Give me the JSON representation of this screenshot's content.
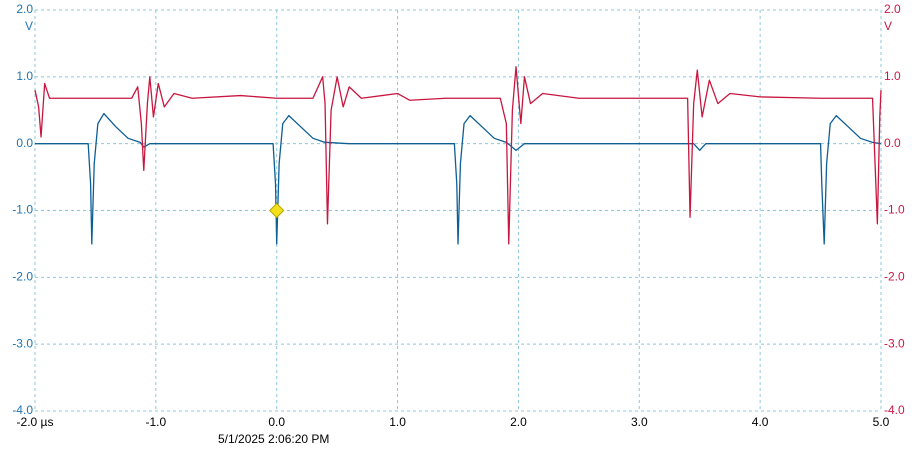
{
  "chart_data": {
    "type": "line",
    "ylabel": "V",
    "y2label": "V",
    "timestamp": "5/1/2025 2:06:20 PM",
    "xlim": [
      -2,
      5
    ],
    "xticks": [
      {
        "value": -2,
        "label": "-2.0 µs"
      },
      {
        "value": -1,
        "label": "-1.0"
      },
      {
        "value": 0,
        "label": "0.0"
      },
      {
        "value": 1,
        "label": "1.0"
      },
      {
        "value": 2,
        "label": "2.0"
      },
      {
        "value": 3,
        "label": "3.0"
      },
      {
        "value": 4,
        "label": "4.0"
      },
      {
        "value": 5,
        "label": "5.0"
      }
    ],
    "ylim": [
      -4,
      2
    ],
    "yticks": [
      {
        "value": 2,
        "label": "2.0"
      },
      {
        "value": 1,
        "label": "1.0"
      },
      {
        "value": 0,
        "label": "0.0"
      },
      {
        "value": -1,
        "label": "-1.0"
      },
      {
        "value": -2,
        "label": "-2.0"
      },
      {
        "value": -3,
        "label": "-3.0"
      },
      {
        "value": -4,
        "label": "-4.0"
      }
    ],
    "y2lim": [
      -4,
      2
    ],
    "y2ticks": [
      {
        "value": 2,
        "label": "2.0"
      },
      {
        "value": 1,
        "label": "1.0"
      },
      {
        "value": 0,
        "label": "0.0"
      },
      {
        "value": -1,
        "label": "-1.0"
      },
      {
        "value": -2,
        "label": "-2.0"
      },
      {
        "value": -3,
        "label": "-3.0"
      },
      {
        "value": -4,
        "label": "-4.0"
      }
    ],
    "grid": true,
    "y_color": "#1e73b0",
    "y2_color": "#cc1745",
    "series": [
      {
        "color": "#0d5f94",
        "x": [
          -2,
          -1.56,
          -1.54,
          -1.53,
          -1.51,
          -1.48,
          -1.43,
          -1.33,
          -1.23,
          -1.13,
          -1.1,
          -1.05,
          -0.5,
          -0.03,
          -0.01,
          0,
          0.02,
          0.05,
          0.1,
          0.2,
          0.3,
          0.4,
          0.6,
          1.47,
          1.49,
          1.5,
          1.52,
          1.55,
          1.6,
          1.7,
          1.8,
          1.9,
          1.98,
          2.05,
          3,
          3.45,
          3.5,
          3.55,
          4.5,
          4.51,
          4.53,
          4.55,
          4.58,
          4.63,
          4.73,
          4.83,
          4.93,
          5
        ],
        "values": [
          0,
          0,
          -0.6,
          -1.5,
          -0.3,
          0.3,
          0.45,
          0.25,
          0.08,
          0.02,
          -0.05,
          0,
          0,
          0,
          -0.6,
          -1.5,
          -0.3,
          0.3,
          0.42,
          0.25,
          0.08,
          0.02,
          0,
          0,
          -0.6,
          -1.5,
          -0.3,
          0.3,
          0.42,
          0.25,
          0.08,
          0.02,
          -0.1,
          0,
          0,
          0,
          -0.1,
          0,
          0,
          -0.6,
          -1.5,
          -0.3,
          0.3,
          0.42,
          0.25,
          0.08,
          0.02,
          0
        ]
      },
      {
        "color": "#c8163f",
        "axis": "y2",
        "x": [
          -2,
          -1.97,
          -1.95,
          -1.92,
          -1.88,
          -1.5,
          -1.2,
          -1.15,
          -1.12,
          -1.1,
          -1.07,
          -1.05,
          -1.02,
          -0.98,
          -0.93,
          -0.85,
          -0.7,
          -0.3,
          0,
          0.3,
          0.38,
          0.4,
          0.42,
          0.45,
          0.5,
          0.55,
          0.6,
          0.7,
          1.0,
          1.1,
          1.4,
          1.85,
          1.9,
          1.92,
          1.95,
          1.98,
          2.02,
          2.05,
          2.1,
          2.2,
          2.5,
          3.4,
          3.42,
          3.45,
          3.48,
          3.52,
          3.58,
          3.65,
          3.75,
          4.0,
          4.5,
          4.93,
          4.97,
          4.99,
          5
        ],
        "values": [
          0.8,
          0.55,
          0.1,
          0.9,
          0.68,
          0.68,
          0.68,
          0.85,
          0.3,
          -0.4,
          0.6,
          1.0,
          0.4,
          0.9,
          0.55,
          0.75,
          0.68,
          0.72,
          0.68,
          0.68,
          1.0,
          0.6,
          -1.2,
          0.5,
          1.0,
          0.55,
          0.85,
          0.68,
          0.75,
          0.65,
          0.68,
          0.68,
          0.3,
          -1.5,
          0.5,
          1.15,
          0.3,
          1.0,
          0.6,
          0.75,
          0.68,
          0.68,
          -1.1,
          0.6,
          1.1,
          0.4,
          0.95,
          0.6,
          0.75,
          0.7,
          0.68,
          0.68,
          -1.2,
          0.4,
          0.8
        ]
      }
    ],
    "marker": {
      "x": 0,
      "y": -1,
      "color": "#f2e01a"
    }
  }
}
